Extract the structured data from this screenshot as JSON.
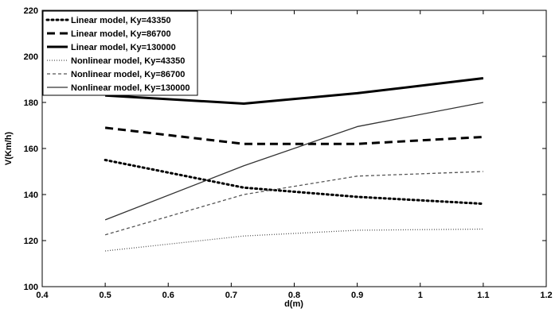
{
  "chart_data": {
    "type": "line",
    "title": "",
    "xlabel": "d(m)",
    "ylabel": "V(Km/h)",
    "xlim": [
      0.4,
      1.2
    ],
    "ylim": [
      100,
      220
    ],
    "xticks": [
      0.4,
      0.5,
      0.6,
      0.7,
      0.8,
      0.9,
      1,
      1.1,
      1.2
    ],
    "xtick_labels": [
      "0.4",
      "0.5",
      "0.6",
      "0.7",
      "0.8",
      "0.9",
      "1",
      "1.1",
      "1.2"
    ],
    "yticks": [
      100,
      120,
      140,
      160,
      180,
      200,
      220
    ],
    "ytick_labels": [
      "100",
      "120",
      "140",
      "160",
      "180",
      "200",
      "220"
    ],
    "grid": false,
    "legend_position": "top-left",
    "x": [
      0.5,
      0.72,
      0.9,
      1.1
    ],
    "series": [
      {
        "name": "Linear model, Ky=43350",
        "values": [
          155,
          143,
          139,
          136
        ],
        "style": "dotted-thick",
        "color": "#000000"
      },
      {
        "name": "Linear model, Ky=86700",
        "values": [
          169,
          162,
          162,
          165
        ],
        "style": "dashed-thick",
        "color": "#000000"
      },
      {
        "name": "Linear model, Ky=130000",
        "values": [
          183,
          179.5,
          184,
          190.5
        ],
        "style": "solid-thick",
        "color": "#000000"
      },
      {
        "name": "Nonlinear model, Ky=43350",
        "values": [
          115.5,
          122,
          124.5,
          125
        ],
        "style": "dotted-thin",
        "color": "#555555"
      },
      {
        "name": "Nonlinear model, Ky=86700",
        "values": [
          122.5,
          140,
          148,
          150
        ],
        "style": "dashed-thin",
        "color": "#555555"
      },
      {
        "name": "Nonlinear model, Ky=130000",
        "values": [
          129,
          152.5,
          169.5,
          180
        ],
        "style": "solid-thin",
        "color": "#333333"
      }
    ]
  }
}
